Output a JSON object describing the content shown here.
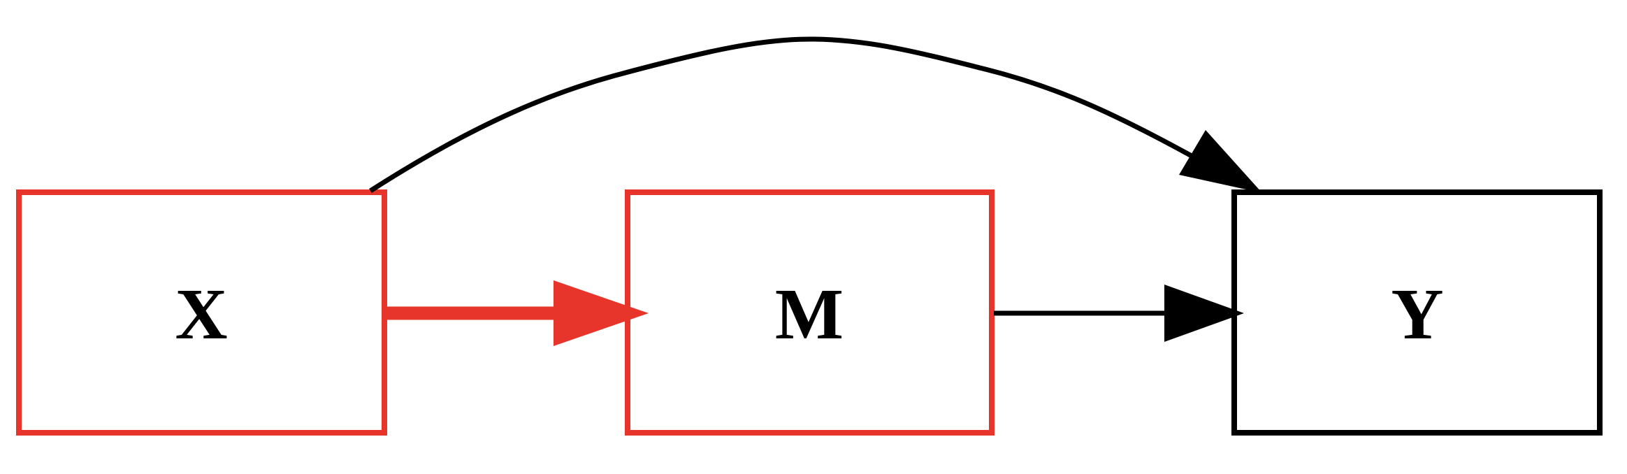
{
  "diagram": {
    "type": "directed-graph",
    "nodes": [
      {
        "id": "X",
        "label": "X",
        "highlighted": true
      },
      {
        "id": "M",
        "label": "M",
        "highlighted": true
      },
      {
        "id": "Y",
        "label": "Y",
        "highlighted": false
      }
    ],
    "edges": [
      {
        "from": "X",
        "to": "M",
        "highlighted": true
      },
      {
        "from": "M",
        "to": "Y",
        "highlighted": false
      },
      {
        "from": "X",
        "to": "Y",
        "highlighted": false
      }
    ]
  },
  "colors": {
    "highlight": "#e8352b",
    "normal": "#000000",
    "background": "#ffffff"
  }
}
